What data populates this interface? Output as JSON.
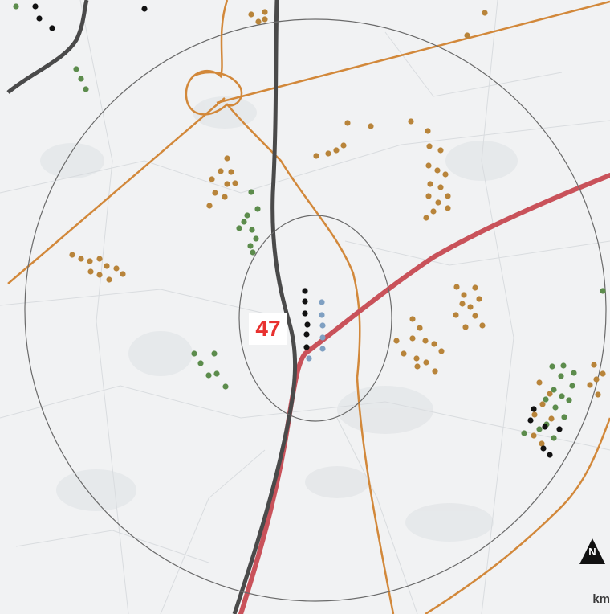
{
  "map": {
    "site_number": "47",
    "scale_unit": "km",
    "north_label": "N",
    "colors": {
      "background": "#f1f2f3",
      "motorway_gray": "#4a4a4a",
      "highway_red": "#c9525a",
      "road_orange": "#d2883a",
      "ring": "#6a6a6a",
      "turbine_orange": "#b8843a",
      "turbine_green": "#5c8c4c",
      "turbine_black": "#111111",
      "turbine_blue": "#7fa0c2",
      "label_red": "#e8312f"
    },
    "legend_icons": [
      "north-arrow-icon"
    ]
  }
}
